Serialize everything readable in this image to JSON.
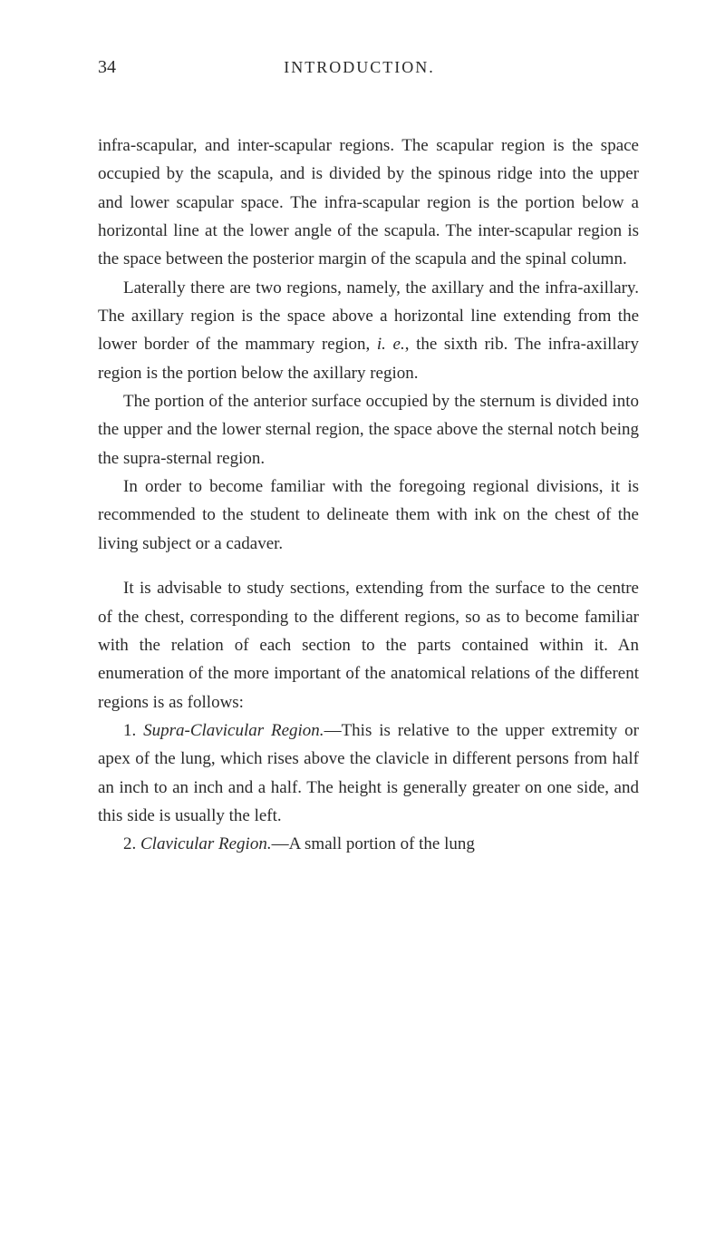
{
  "page_number": "34",
  "running_head": "INTRODUCTION.",
  "typography": {
    "font_family": "Georgia, Times New Roman, serif",
    "body_fontsize": 19,
    "header_fontsize": 18,
    "pagenum_fontsize": 20,
    "text_color": "#2a2a2a",
    "background_color": "#ffffff",
    "line_height": 1.65,
    "text_indent": 28
  },
  "paragraphs": {
    "p1_a": "infra-scapular, and inter-scapular regions. The scapular region is the space occupied by the scapula, and is divided by the spinous ridge into the upper and lower scapular space. The infra-scapular region is the portion below a horizontal line at the lower angle of the scapula. The inter-scapular region is the space between the posterior margin of the scapula and the spinal column.",
    "p2": "Laterally there are two regions, namely, the axillary and the infra-axillary. The axillary region is the space above a horizontal line extending from the lower border of the mammary region, ",
    "p2_italic": "i. e.",
    "p2_b": ", the sixth rib. The infra-axillary region is the portion below the axillary region.",
    "p3": "The portion of the anterior surface occupied by the sternum is divided into the upper and the lower sternal region, the space above the sternal notch being the supra-sternal region.",
    "p4": "In order to become familiar with the foregoing regional divisions, it is recommended to the student to delineate them with ink on the chest of the living subject or a cadaver.",
    "p5": "It is advisable to study sections, extending from the surface to the centre of the chest, corresponding to the different regions, so as to become familiar with the relation of each section to the parts contained within it. An enumeration of the more important of the anatomical relations of the different regions is as follows:",
    "p6_a": "1. ",
    "p6_italic": "Supra-Clavicular Region.",
    "p6_b": "—This is relative to the upper extremity or apex of the lung, which rises above the clavicle in different persons from half an inch to an inch and a half. The height is generally greater on one side, and this side is usually the left.",
    "p7_a": "2. ",
    "p7_italic": "Clavicular Region.",
    "p7_b": "—A small portion of the lung"
  }
}
